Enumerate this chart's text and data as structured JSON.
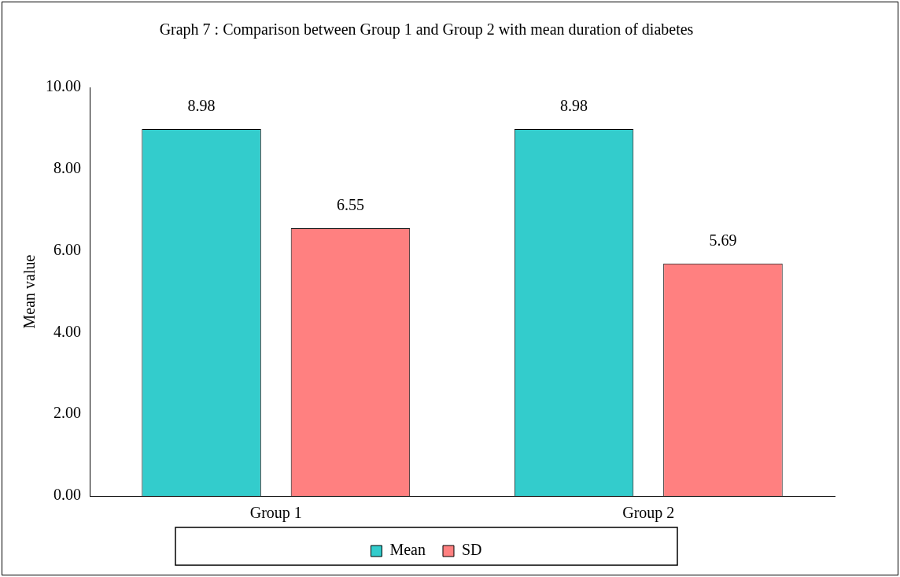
{
  "chart_data": {
    "type": "bar",
    "title": "Graph 7 : Comparison between Group 1 and Group 2 with mean duration of diabetes",
    "ylabel": "Mean value",
    "categories": [
      "Group 1",
      "Group 2"
    ],
    "series": [
      {
        "name": "Mean",
        "color": "#33cccc",
        "values": [
          8.98,
          8.98
        ]
      },
      {
        "name": "SD",
        "color": "#ff8080",
        "values": [
          6.55,
          5.69
        ]
      }
    ],
    "ylim": [
      0,
      10
    ],
    "yticks": [
      {
        "value": 0,
        "label": "0.00"
      },
      {
        "value": 2,
        "label": "2.00"
      },
      {
        "value": 4,
        "label": "4.00"
      },
      {
        "value": 6,
        "label": "6.00"
      },
      {
        "value": 8,
        "label": "8.00"
      },
      {
        "value": 10,
        "label": "10.00"
      }
    ],
    "grid": false,
    "legend": "bottom",
    "data_labels": true
  }
}
